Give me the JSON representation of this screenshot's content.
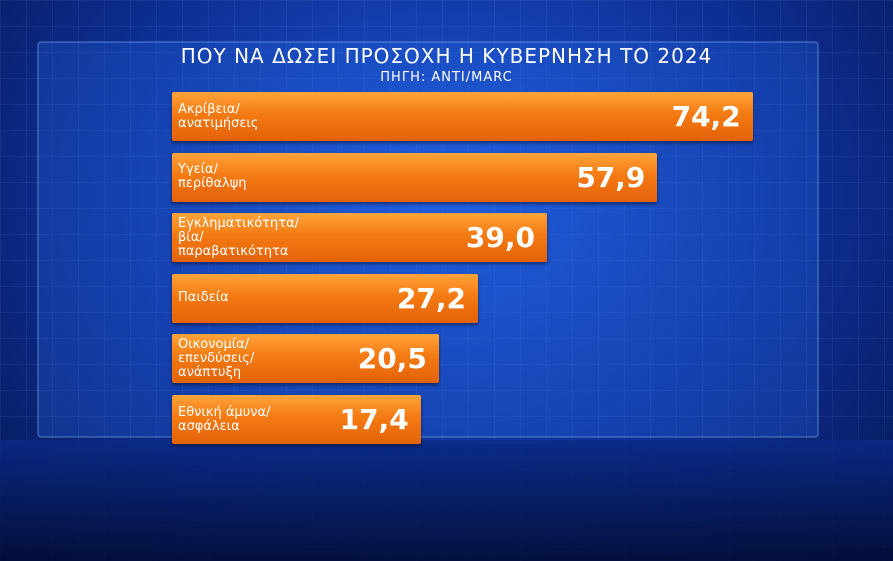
{
  "chart_data": {
    "type": "bar",
    "orientation": "horizontal",
    "title": "ΠΟΥ ΝΑ ΔΩΣΕΙ ΠΡΟΣΟΧΗ Η ΚΥΒΕΡΝΗΣΗ ΤΟ 2024",
    "subtitle": "ΠΗΓΗ: ANTI/MARC",
    "categories": [
      "Ακρίβεια/\nανατιμήσεις",
      "Υγεία/\nπερίθαλψη",
      "Εγκληματικότητα/\nβία/\nπαραβατικότητα",
      "Παιδεία",
      "Οικονομία/\nεπενδύσεις/\nανάπτυξη",
      "Εθνική άμυνα/\nασφάλεια"
    ],
    "values": [
      74.2,
      57.9,
      39.0,
      27.2,
      20.5,
      17.4
    ],
    "value_labels": [
      "74,2",
      "57,9",
      "39,0",
      "27,2",
      "20,5",
      "17,4"
    ],
    "color": "#f47a12"
  }
}
